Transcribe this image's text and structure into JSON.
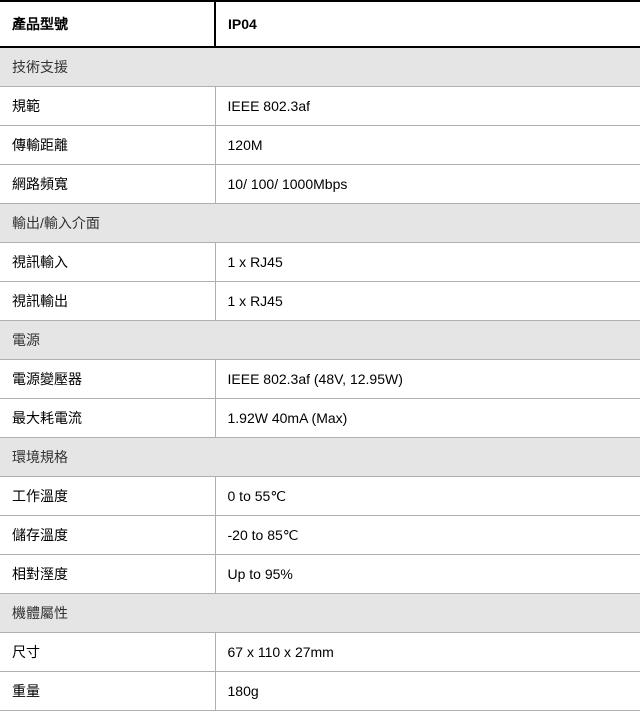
{
  "header": {
    "label": "產品型號",
    "value": "IP04"
  },
  "sections": [
    {
      "title": "技術支援",
      "rows": [
        {
          "label": "規範",
          "value": "IEEE 802.3af"
        },
        {
          "label": "傳輸距離",
          "value": "120M"
        },
        {
          "label": "網路頻寬",
          "value": "10/ 100/ 1000Mbps"
        }
      ]
    },
    {
      "title": "輸出/輸入介面",
      "rows": [
        {
          "label": "視訊輸入",
          "value": "1 x RJ45"
        },
        {
          "label": "視訊輸出",
          "value": "1 x RJ45"
        }
      ]
    },
    {
      "title": "電源",
      "rows": [
        {
          "label": "電源變壓器",
          "value": "IEEE 802.3af (48V, 12.95W)"
        },
        {
          "label": "最大耗電流",
          "value": "1.92W 40mA (Max)"
        }
      ]
    },
    {
      "title": "環境規格",
      "rows": [
        {
          "label": "工作溫度",
          "value": "0 to 55℃"
        },
        {
          "label": "儲存溫度",
          "value": "-20 to 85℃"
        },
        {
          "label": "相對溼度",
          "value": "Up to 95%"
        }
      ]
    },
    {
      "title": "機體屬性",
      "rows": [
        {
          "label": "尺寸",
          "value": "67 x 110 x 27mm"
        },
        {
          "label": "重量",
          "value": "180g"
        }
      ]
    }
  ],
  "styling": {
    "font_family": "Arial, Microsoft JhengHei, sans-serif",
    "font_size": 14,
    "header_font_weight": "bold",
    "header_border_color": "#000000",
    "header_border_width": 2,
    "cell_border_color": "#b0b0b0",
    "cell_border_width": 1,
    "section_bg_color": "#e5e5e5",
    "data_bg_color": "#ffffff",
    "label_column_width": 215,
    "header_row_height": 44,
    "section_row_height": 38,
    "data_row_height": 36,
    "cell_padding": "9px 12px",
    "text_color": "#333333"
  }
}
